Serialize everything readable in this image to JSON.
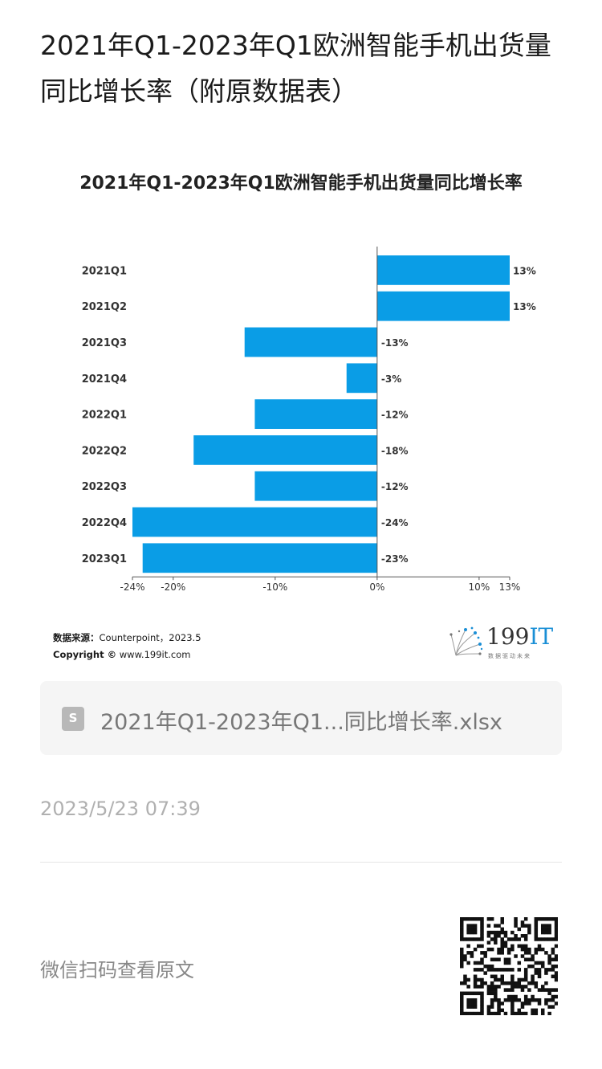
{
  "article": {
    "title": "2021年Q1-2023年Q1欧洲智能手机出货量同比增长率（附原数据表）"
  },
  "chart_data": {
    "type": "bar",
    "orientation": "horizontal",
    "title": "2021年Q1-2023年Q1欧洲智能手机出货量同比增长率",
    "categories": [
      "2021Q1",
      "2021Q2",
      "2021Q3",
      "2021Q4",
      "2022Q1",
      "2022Q2",
      "2022Q3",
      "2022Q4",
      "2023Q1"
    ],
    "values": [
      13,
      13,
      -13,
      -3,
      -12,
      -18,
      -12,
      -24,
      -23
    ],
    "value_labels": [
      "13%",
      "13%",
      "-13%",
      "-3%",
      "-12%",
      "-18%",
      "-12%",
      "-24%",
      "-23%"
    ],
    "xlim": [
      -24,
      13
    ],
    "xticks": [
      -24,
      -20,
      -10,
      0,
      10,
      13
    ],
    "xtick_labels": [
      "-24%",
      "-20%",
      "-10%",
      "0%",
      "10%",
      "13%"
    ],
    "bar_color": "#0a9de6",
    "grid": false,
    "legend": "none"
  },
  "chart_footer": {
    "source_label": "数据来源：",
    "source_value": "Counterpoint，2023.5",
    "copyright_label": "Copyright ©",
    "copyright_value": " www.199it.com",
    "brand_name_num": "199",
    "brand_name_it": "IT",
    "brand_slogan": "数据驱动未来"
  },
  "attachment": {
    "file_name": "2021年Q1-2023年Q1...同比增长率.xlsx",
    "icon": "spreadsheet-file-icon",
    "icon_letter": "S"
  },
  "meta": {
    "timestamp": "2023/5/23 07:39"
  },
  "footer": {
    "qr_hint": "微信扫码查看原文",
    "qr_icon": "qr-code-icon"
  }
}
